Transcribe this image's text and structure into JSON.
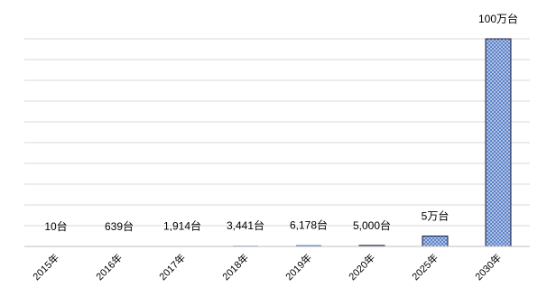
{
  "chart_data": {
    "type": "bar",
    "categories": [
      "2015年",
      "2016年",
      "2017年",
      "2018年",
      "2019年",
      "2020年",
      "2025年",
      "2030年"
    ],
    "values": [
      10,
      639,
      1914,
      3441,
      6178,
      5000,
      50000,
      1000000
    ],
    "value_labels": [
      "10台",
      "639台",
      "1,914台",
      "3,441台",
      "6,178台",
      "5,000台",
      "5万台",
      "100万台"
    ],
    "color": "#4472c4",
    "hatch": [
      false,
      false,
      false,
      false,
      false,
      true,
      true,
      true
    ],
    "ylim": [
      0,
      1000000
    ],
    "grid": true
  }
}
